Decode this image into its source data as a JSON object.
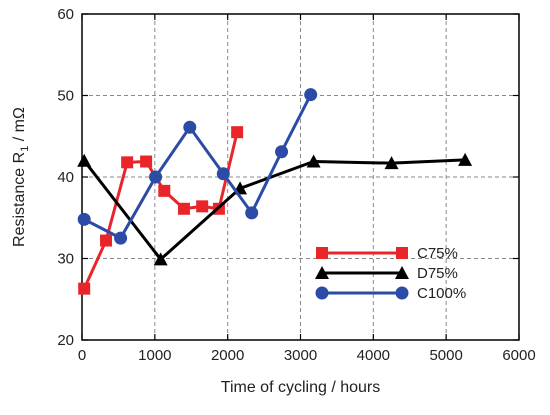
{
  "chart_data": {
    "type": "line",
    "xlabel": "Time of cycling  /  hours",
    "ylabel_main": "Resistance R",
    "ylabel_sub": "1",
    "ylabel_unit": " / mΩ",
    "xlim": [
      0,
      6000
    ],
    "ylim": [
      20,
      60
    ],
    "xticks": [
      0,
      1000,
      2000,
      3000,
      4000,
      5000,
      6000
    ],
    "yticks": [
      20,
      30,
      40,
      50,
      60
    ],
    "grid": true,
    "legend_position": "bottom-right",
    "series": [
      {
        "name": "C75%",
        "color": "#e8262a",
        "marker": "square",
        "x": [
          30,
          330,
          620,
          880,
          1130,
          1400,
          1650,
          1880,
          2130
        ],
        "y": [
          26.3,
          32.2,
          41.8,
          41.9,
          38.3,
          36.1,
          36.4,
          36.1,
          45.5
        ]
      },
      {
        "name": "D75%",
        "color": "#000000",
        "marker": "triangle",
        "x": [
          30,
          1080,
          2170,
          3180,
          4250,
          5260
        ],
        "y": [
          42.0,
          29.9,
          38.6,
          41.9,
          41.7,
          42.1
        ]
      },
      {
        "name": "C100%",
        "color": "#2b4ba6",
        "marker": "circle",
        "x": [
          30,
          530,
          1010,
          1480,
          1940,
          2330,
          2740,
          3140
        ],
        "y": [
          34.8,
          32.5,
          40.0,
          46.1,
          40.4,
          35.6,
          43.1,
          50.1
        ]
      }
    ]
  }
}
